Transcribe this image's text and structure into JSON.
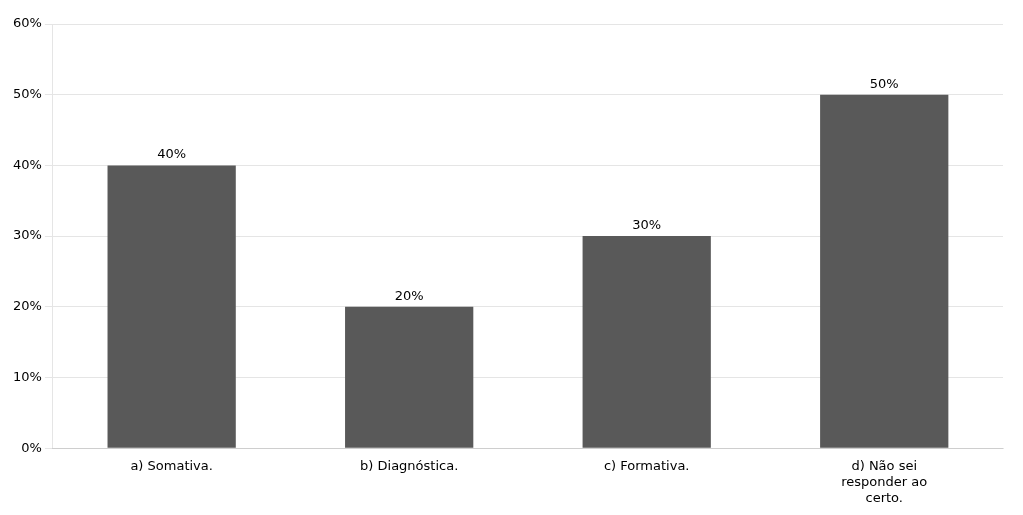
{
  "chart_data": {
    "type": "bar",
    "categories": [
      "a) Somativa.",
      "b) Diagnóstica.",
      "c) Formativa.",
      "d) Não sei\nresponder ao\ncerto."
    ],
    "values": [
      40,
      20,
      30,
      50
    ],
    "value_labels": [
      "40%",
      "20%",
      "30%",
      "50%"
    ],
    "data_labels": true,
    "color": "#595959",
    "ylim": [
      0,
      60
    ],
    "yticks": [
      {
        "value": 0,
        "label": "0%"
      },
      {
        "value": 10,
        "label": "10%"
      },
      {
        "value": 20,
        "label": "20%"
      },
      {
        "value": 30,
        "label": "30%"
      },
      {
        "value": 40,
        "label": "40%"
      },
      {
        "value": 50,
        "label": "50%"
      },
      {
        "value": 60,
        "label": "60%"
      }
    ],
    "grid": true
  }
}
